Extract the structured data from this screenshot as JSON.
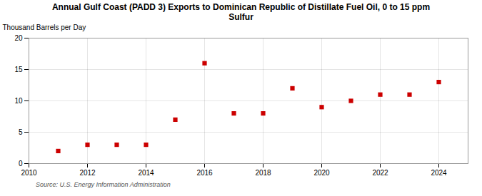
{
  "chart_data": {
    "type": "scatter",
    "title": "Annual Gulf Coast (PADD 3) Exports to Dominican Republic of Distillate Fuel Oil, 0 to 15 ppm\nSulfur",
    "ylabel": "Thousand Barrels per Day",
    "annotation": "Source: U.S. Energy Information Administration",
    "x": [
      2011,
      2012,
      2013,
      2014,
      2015,
      2016,
      2017,
      2018,
      2019,
      2020,
      2021,
      2022,
      2023,
      2024
    ],
    "values": [
      2,
      3,
      3,
      3,
      7,
      16,
      8,
      8,
      12,
      9,
      10,
      11,
      11,
      13
    ],
    "color": "#cc0000",
    "marker": "square",
    "xlim": [
      2010,
      2025
    ],
    "ylim": [
      0,
      20
    ],
    "xticks": [
      2010,
      2012,
      2014,
      2016,
      2018,
      2020,
      2022,
      2024
    ],
    "yticks": [
      0,
      5,
      10,
      15,
      20
    ],
    "grid": true
  }
}
